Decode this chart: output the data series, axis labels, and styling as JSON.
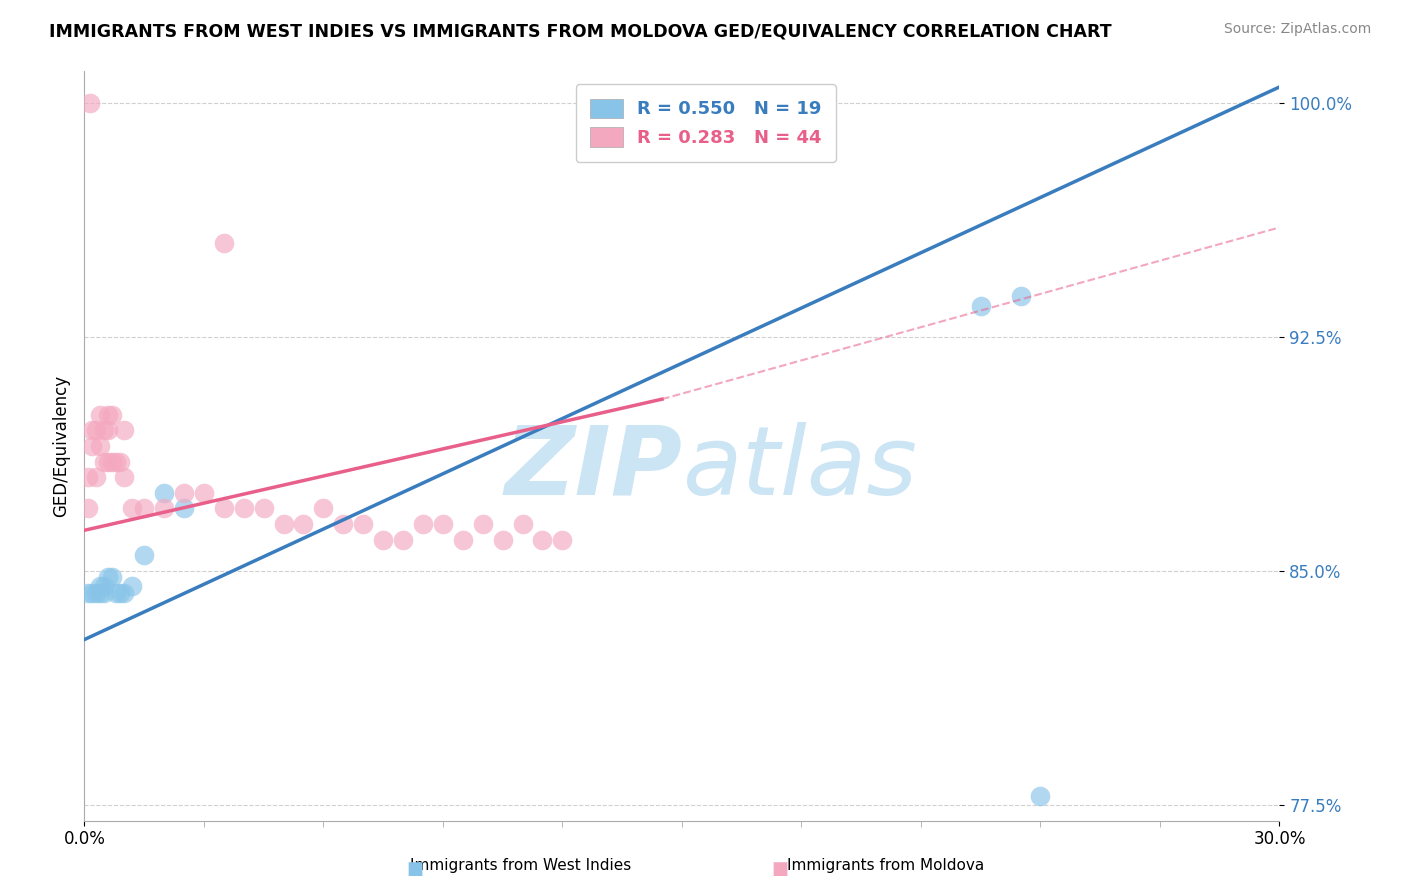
{
  "title": "IMMIGRANTS FROM WEST INDIES VS IMMIGRANTS FROM MOLDOVA GED/EQUIVALENCY CORRELATION CHART",
  "source": "Source: ZipAtlas.com",
  "xlabel_blue": "Immigrants from West Indies",
  "xlabel_pink": "Immigrants from Moldova",
  "ylabel": "GED/Equivalency",
  "xlim": [
    0.0,
    0.3
  ],
  "ylim": [
    0.77,
    1.01
  ],
  "yticks_major": [
    0.775,
    0.85,
    0.925,
    1.0
  ],
  "ytick_labels": [
    "77.5%",
    "85.0%",
    "92.5%",
    "100.0%"
  ],
  "R_blue": 0.55,
  "N_blue": 19,
  "R_pink": 0.283,
  "N_pink": 44,
  "color_blue": "#88c4e8",
  "color_pink": "#f4a8c0",
  "color_blue_line": "#3a7dbf",
  "color_pink_line": "#e8608a",
  "watermark_color": "#cce5f5",
  "blue_x": [
    0.001,
    0.002,
    0.003,
    0.004,
    0.004,
    0.005,
    0.005,
    0.006,
    0.007,
    0.008,
    0.009,
    0.01,
    0.012,
    0.015,
    0.02,
    0.025,
    0.225,
    0.235,
    0.24
  ],
  "blue_y": [
    0.843,
    0.843,
    0.843,
    0.843,
    0.845,
    0.843,
    0.845,
    0.848,
    0.848,
    0.843,
    0.843,
    0.843,
    0.845,
    0.855,
    0.875,
    0.87,
    0.935,
    0.938,
    0.778
  ],
  "pink_x": [
    0.001,
    0.001,
    0.002,
    0.002,
    0.003,
    0.003,
    0.004,
    0.004,
    0.005,
    0.005,
    0.006,
    0.006,
    0.006,
    0.007,
    0.007,
    0.008,
    0.009,
    0.01,
    0.01,
    0.012,
    0.015,
    0.02,
    0.025,
    0.03,
    0.035,
    0.04,
    0.045,
    0.05,
    0.055,
    0.06,
    0.065,
    0.07,
    0.075,
    0.08,
    0.085,
    0.09,
    0.095,
    0.1,
    0.105,
    0.11,
    0.115,
    0.12,
    0.0015,
    0.035
  ],
  "pink_y": [
    0.87,
    0.88,
    0.89,
    0.895,
    0.88,
    0.895,
    0.89,
    0.9,
    0.885,
    0.895,
    0.885,
    0.895,
    0.9,
    0.885,
    0.9,
    0.885,
    0.885,
    0.88,
    0.895,
    0.87,
    0.87,
    0.87,
    0.875,
    0.875,
    0.87,
    0.87,
    0.87,
    0.865,
    0.865,
    0.87,
    0.865,
    0.865,
    0.86,
    0.86,
    0.865,
    0.865,
    0.86,
    0.865,
    0.86,
    0.865,
    0.86,
    0.86,
    1.0,
    0.955
  ],
  "blue_line_x": [
    0.0,
    0.3
  ],
  "blue_line_y": [
    0.828,
    1.005
  ],
  "pink_line_x0": 0.0,
  "pink_line_x1": 0.145,
  "pink_line_x2": 0.3,
  "pink_line_y0": 0.863,
  "pink_line_y1": 0.905,
  "pink_line_y2": 0.96
}
